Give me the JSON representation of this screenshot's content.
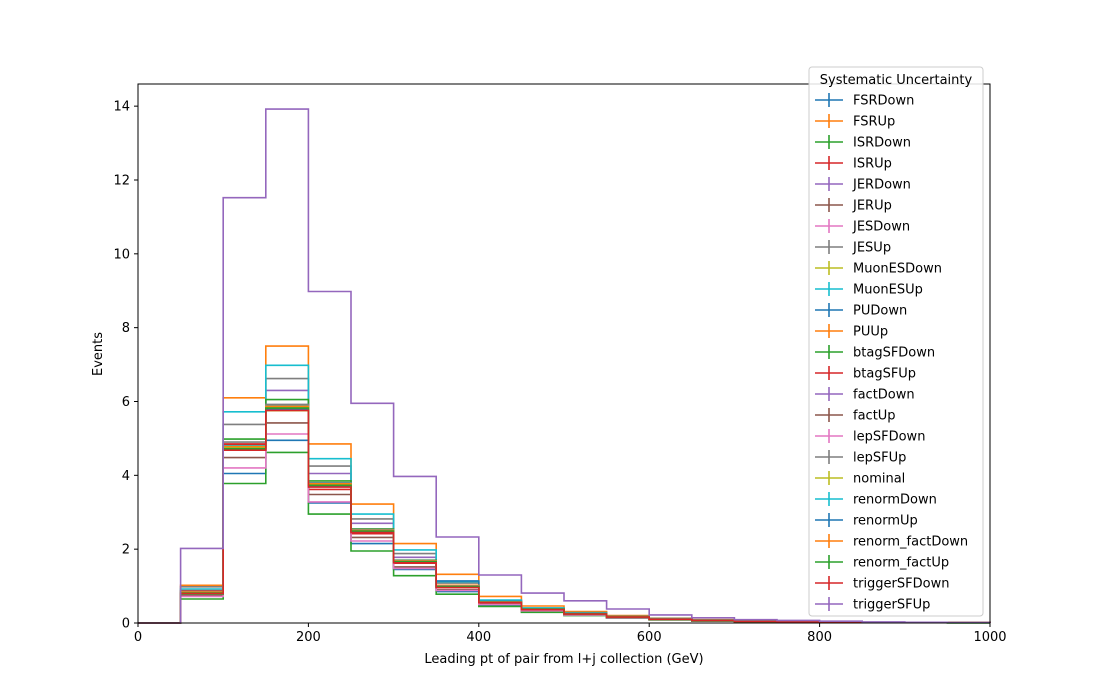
{
  "chart_data": {
    "type": "step-histogram",
    "xlabel": "Leading pt of pair from l+j collection (GeV)",
    "ylabel": "Events",
    "xlim": [
      0,
      1000
    ],
    "ylim": [
      0,
      14.6
    ],
    "xticks": [
      0,
      200,
      400,
      600,
      800,
      1000
    ],
    "yticks": [
      0,
      2,
      4,
      6,
      8,
      10,
      12,
      14
    ],
    "bin_edges": [
      0,
      50,
      100,
      150,
      200,
      250,
      300,
      350,
      400,
      450,
      500,
      550,
      600,
      650,
      700,
      750,
      800,
      850,
      900,
      950,
      1000
    ],
    "legend_title": "Systematic Uncertainty",
    "legend_position": "top-right",
    "grid": false,
    "series": [
      {
        "name": "FSRDown",
        "color": "#1f77b4",
        "values": [
          0,
          0.78,
          4.05,
          4.95,
          3.25,
          2.15,
          1.45,
          0.85,
          0.48,
          0.32,
          0.22,
          0.14,
          0.09,
          0.06,
          0.04,
          0.03,
          0.02,
          0.01,
          0.01,
          0.01
        ]
      },
      {
        "name": "FSRUp",
        "color": "#ff7f0e",
        "values": [
          0,
          1.02,
          6.1,
          7.5,
          4.85,
          3.22,
          2.15,
          1.32,
          0.72,
          0.46,
          0.31,
          0.2,
          0.13,
          0.09,
          0.06,
          0.04,
          0.03,
          0.02,
          0.01,
          0.01
        ]
      },
      {
        "name": "ISRDown",
        "color": "#2ca02c",
        "values": [
          0,
          0.65,
          3.78,
          4.62,
          2.95,
          1.95,
          1.28,
          0.78,
          0.45,
          0.29,
          0.2,
          0.13,
          0.08,
          0.05,
          0.03,
          0.02,
          0.02,
          0.01,
          0.01,
          0.0
        ]
      },
      {
        "name": "ISRUp",
        "color": "#d62728",
        "values": [
          0,
          0.88,
          4.82,
          5.82,
          3.62,
          2.42,
          1.62,
          0.96,
          0.55,
          0.36,
          0.24,
          0.16,
          0.1,
          0.07,
          0.04,
          0.03,
          0.02,
          0.01,
          0.01,
          0.01
        ]
      },
      {
        "name": "JERDown",
        "color": "#9467bd",
        "values": [
          0,
          0.8,
          4.75,
          6.3,
          4.05,
          2.7,
          1.78,
          1.02,
          0.58,
          0.38,
          0.26,
          0.17,
          0.11,
          0.07,
          0.05,
          0.03,
          0.02,
          0.01,
          0.01,
          0.01
        ]
      },
      {
        "name": "JERUp",
        "color": "#8c564b",
        "values": [
          0,
          0.75,
          4.48,
          5.42,
          3.48,
          2.32,
          1.52,
          0.9,
          0.52,
          0.34,
          0.23,
          0.15,
          0.1,
          0.06,
          0.04,
          0.03,
          0.02,
          0.01,
          0.01,
          0.01
        ]
      },
      {
        "name": "JESDown",
        "color": "#e377c2",
        "values": [
          0,
          0.72,
          4.2,
          5.12,
          3.28,
          2.22,
          1.48,
          0.88,
          0.5,
          0.33,
          0.22,
          0.14,
          0.09,
          0.06,
          0.04,
          0.03,
          0.02,
          0.01,
          0.01,
          0.01
        ]
      },
      {
        "name": "JESUp",
        "color": "#7f7f7f",
        "values": [
          0,
          0.98,
          5.38,
          6.62,
          4.25,
          2.82,
          1.88,
          1.08,
          0.6,
          0.4,
          0.27,
          0.18,
          0.11,
          0.07,
          0.05,
          0.03,
          0.02,
          0.01,
          0.01,
          0.01
        ]
      },
      {
        "name": "MuonESDown",
        "color": "#bcbd22",
        "values": [
          0,
          0.82,
          4.7,
          5.75,
          3.7,
          2.48,
          1.65,
          0.98,
          0.56,
          0.37,
          0.25,
          0.16,
          0.1,
          0.07,
          0.04,
          0.03,
          0.02,
          0.01,
          0.01,
          0.01
        ]
      },
      {
        "name": "MuonESUp",
        "color": "#17becf",
        "values": [
          0,
          0.92,
          5.72,
          6.98,
          4.45,
          2.95,
          1.98,
          1.12,
          0.62,
          0.41,
          0.28,
          0.18,
          0.12,
          0.08,
          0.05,
          0.03,
          0.02,
          0.01,
          0.01,
          0.01
        ]
      },
      {
        "name": "PUDown",
        "color": "#1f77b4",
        "values": [
          0,
          0.84,
          4.78,
          5.85,
          3.75,
          2.5,
          1.68,
          1.14,
          0.58,
          0.38,
          0.26,
          0.17,
          0.11,
          0.07,
          0.05,
          0.03,
          0.02,
          0.01,
          0.01,
          0.01
        ]
      },
      {
        "name": "PUUp",
        "color": "#ff7f0e",
        "values": [
          0,
          0.86,
          4.72,
          5.8,
          3.72,
          2.47,
          1.66,
          1.02,
          0.57,
          0.38,
          0.26,
          0.17,
          0.11,
          0.07,
          0.05,
          0.03,
          0.02,
          0.01,
          0.01,
          0.01
        ]
      },
      {
        "name": "btagSFDown",
        "color": "#2ca02c",
        "values": [
          0,
          0.78,
          4.98,
          6.05,
          3.85,
          2.55,
          1.7,
          1.0,
          0.57,
          0.38,
          0.26,
          0.17,
          0.11,
          0.07,
          0.05,
          0.03,
          0.02,
          0.01,
          0.01,
          0.01
        ]
      },
      {
        "name": "btagSFUp",
        "color": "#d62728",
        "values": [
          0,
          0.85,
          4.85,
          5.9,
          3.78,
          2.5,
          1.67,
          0.99,
          0.56,
          0.37,
          0.25,
          0.16,
          0.1,
          0.07,
          0.04,
          0.03,
          0.02,
          0.01,
          0.01,
          0.01
        ]
      },
      {
        "name": "factDown",
        "color": "#9467bd",
        "values": [
          0,
          0.82,
          4.74,
          5.84,
          3.74,
          2.49,
          1.66,
          0.98,
          0.56,
          0.37,
          0.25,
          0.16,
          0.1,
          0.07,
          0.04,
          0.03,
          0.02,
          0.01,
          0.01,
          0.01
        ]
      },
      {
        "name": "factUp",
        "color": "#8c564b",
        "values": [
          0,
          0.83,
          4.76,
          5.86,
          3.76,
          2.51,
          1.67,
          0.99,
          0.56,
          0.37,
          0.25,
          0.16,
          0.1,
          0.07,
          0.04,
          0.03,
          0.02,
          0.01,
          0.01,
          0.01
        ]
      },
      {
        "name": "lepSFDown",
        "color": "#e377c2",
        "values": [
          0,
          0.8,
          4.7,
          5.78,
          3.7,
          2.46,
          1.64,
          0.97,
          0.55,
          0.36,
          0.25,
          0.16,
          0.1,
          0.07,
          0.04,
          0.03,
          0.02,
          0.01,
          0.01,
          0.01
        ]
      },
      {
        "name": "lepSFUp",
        "color": "#7f7f7f",
        "values": [
          0,
          0.86,
          4.9,
          5.92,
          3.8,
          2.53,
          1.69,
          1.0,
          0.57,
          0.38,
          0.26,
          0.17,
          0.11,
          0.07,
          0.05,
          0.03,
          0.02,
          0.01,
          0.01,
          0.01
        ]
      },
      {
        "name": "nominal",
        "color": "#bcbd22",
        "values": [
          0,
          0.83,
          4.75,
          5.85,
          3.75,
          2.5,
          1.67,
          0.98,
          0.56,
          0.37,
          0.25,
          0.16,
          0.1,
          0.07,
          0.04,
          0.03,
          0.02,
          0.01,
          0.01,
          0.01
        ]
      },
      {
        "name": "renormDown",
        "color": "#17becf",
        "values": [
          0,
          0.84,
          4.8,
          5.88,
          3.78,
          2.52,
          1.68,
          0.99,
          0.56,
          0.37,
          0.25,
          0.16,
          0.1,
          0.07,
          0.04,
          0.03,
          0.02,
          0.01,
          0.01,
          0.01
        ]
      },
      {
        "name": "renormUp",
        "color": "#1f77b4",
        "values": [
          0,
          0.82,
          4.7,
          5.8,
          3.72,
          2.48,
          1.65,
          0.97,
          0.55,
          0.37,
          0.25,
          0.16,
          0.1,
          0.07,
          0.04,
          0.03,
          0.02,
          0.01,
          0.01,
          0.01
        ]
      },
      {
        "name": "renorm_factDown",
        "color": "#ff7f0e",
        "values": [
          0,
          0.84,
          4.78,
          5.87,
          3.77,
          2.51,
          1.68,
          0.99,
          0.56,
          0.37,
          0.25,
          0.16,
          0.1,
          0.07,
          0.04,
          0.03,
          0.02,
          0.01,
          0.01,
          0.01
        ]
      },
      {
        "name": "renorm_factUp",
        "color": "#2ca02c",
        "values": [
          0,
          0.81,
          4.72,
          5.82,
          3.73,
          2.49,
          1.66,
          0.98,
          0.55,
          0.37,
          0.25,
          0.16,
          0.1,
          0.07,
          0.04,
          0.03,
          0.02,
          0.01,
          0.01,
          0.01
        ]
      },
      {
        "name": "triggerSFDown",
        "color": "#d62728",
        "values": [
          0,
          0.8,
          4.68,
          5.76,
          3.68,
          2.45,
          1.63,
          0.96,
          0.55,
          0.36,
          0.24,
          0.16,
          0.1,
          0.07,
          0.04,
          0.03,
          0.02,
          0.01,
          0.01,
          0.01
        ]
      },
      {
        "name": "triggerSFUp",
        "color": "#9467bd",
        "values": [
          0,
          2.02,
          11.52,
          13.92,
          8.98,
          5.95,
          3.97,
          2.33,
          1.3,
          0.81,
          0.6,
          0.38,
          0.22,
          0.14,
          0.09,
          0.07,
          0.05,
          0.03,
          0.02,
          0.01
        ]
      }
    ]
  }
}
